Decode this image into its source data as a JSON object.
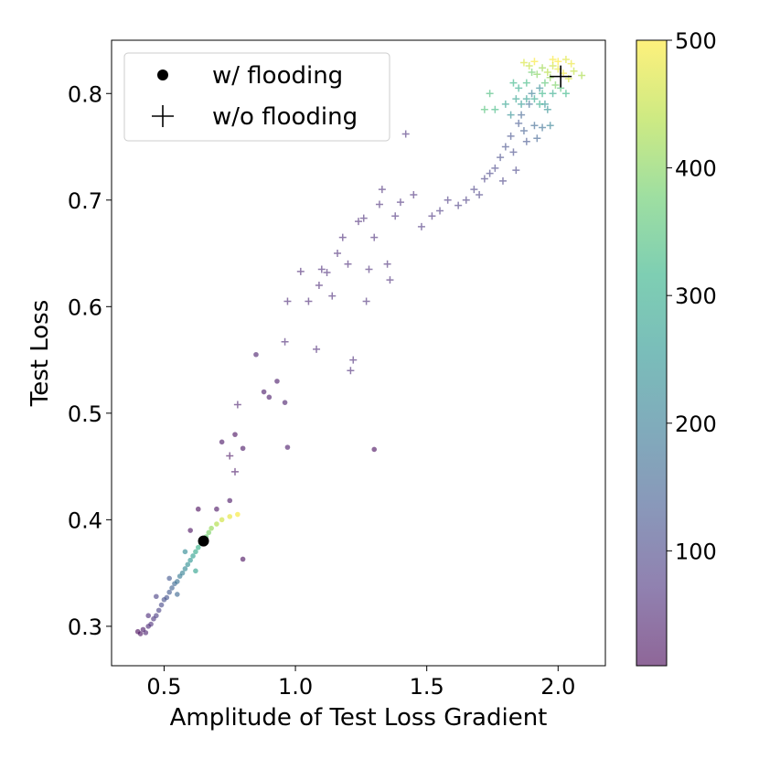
{
  "chart_data": {
    "type": "scatter",
    "xlabel": "Amplitude of Test Loss Gradient",
    "ylabel": "Test Loss",
    "xlim": [
      0.3,
      2.18
    ],
    "ylim": [
      0.263,
      0.85
    ],
    "xticks": [
      {
        "value": 0.5,
        "label": "0.5"
      },
      {
        "value": 1.0,
        "label": "1.0"
      },
      {
        "value": 1.5,
        "label": "1.5"
      },
      {
        "value": 2.0,
        "label": "2.0"
      }
    ],
    "yticks": [
      {
        "value": 0.3,
        "label": "0.3"
      },
      {
        "value": 0.4,
        "label": "0.4"
      },
      {
        "value": 0.5,
        "label": "0.5"
      },
      {
        "value": 0.6,
        "label": "0.6"
      },
      {
        "value": 0.7,
        "label": "0.7"
      },
      {
        "value": 0.8,
        "label": "0.8"
      }
    ],
    "grid": false,
    "legend": {
      "placement": "top-left",
      "entries": [
        {
          "label": "w/ flooding",
          "marker": "dot"
        },
        {
          "label": "w/o flooding",
          "marker": "plus"
        }
      ]
    },
    "colorbar": {
      "colormap": "viridis",
      "range": [
        10,
        500
      ],
      "ticks": [
        {
          "value": 100,
          "label": "100"
        },
        {
          "value": 200,
          "label": "200"
        },
        {
          "value": 300,
          "label": "300"
        },
        {
          "value": 400,
          "label": "400"
        },
        {
          "value": 500,
          "label": "500"
        }
      ]
    },
    "final_points": [
      {
        "series": "w/ flooding",
        "x": 0.65,
        "y": 0.38
      },
      {
        "series": "w/o flooding",
        "x": 2.01,
        "y": 0.816
      }
    ],
    "series": [
      {
        "name": "w/ flooding",
        "marker": "dot",
        "points": [
          {
            "x": 0.4,
            "y": 0.295,
            "c": 15
          },
          {
            "x": 0.41,
            "y": 0.293,
            "c": 25
          },
          {
            "x": 0.42,
            "y": 0.297,
            "c": 35
          },
          {
            "x": 0.43,
            "y": 0.294,
            "c": 45
          },
          {
            "x": 0.44,
            "y": 0.3,
            "c": 55
          },
          {
            "x": 0.45,
            "y": 0.302,
            "c": 65
          },
          {
            "x": 0.46,
            "y": 0.307,
            "c": 75
          },
          {
            "x": 0.47,
            "y": 0.31,
            "c": 85
          },
          {
            "x": 0.48,
            "y": 0.315,
            "c": 95
          },
          {
            "x": 0.49,
            "y": 0.32,
            "c": 105
          },
          {
            "x": 0.5,
            "y": 0.325,
            "c": 115
          },
          {
            "x": 0.51,
            "y": 0.327,
            "c": 125
          },
          {
            "x": 0.52,
            "y": 0.332,
            "c": 135
          },
          {
            "x": 0.53,
            "y": 0.336,
            "c": 150
          },
          {
            "x": 0.54,
            "y": 0.34,
            "c": 165
          },
          {
            "x": 0.55,
            "y": 0.342,
            "c": 180
          },
          {
            "x": 0.56,
            "y": 0.347,
            "c": 195
          },
          {
            "x": 0.57,
            "y": 0.35,
            "c": 210
          },
          {
            "x": 0.58,
            "y": 0.354,
            "c": 225
          },
          {
            "x": 0.59,
            "y": 0.358,
            "c": 240
          },
          {
            "x": 0.6,
            "y": 0.362,
            "c": 255
          },
          {
            "x": 0.61,
            "y": 0.366,
            "c": 275
          },
          {
            "x": 0.62,
            "y": 0.37,
            "c": 295
          },
          {
            "x": 0.63,
            "y": 0.374,
            "c": 315
          },
          {
            "x": 0.64,
            "y": 0.378,
            "c": 340
          },
          {
            "x": 0.66,
            "y": 0.384,
            "c": 370
          },
          {
            "x": 0.67,
            "y": 0.388,
            "c": 390
          },
          {
            "x": 0.68,
            "y": 0.392,
            "c": 410
          },
          {
            "x": 0.7,
            "y": 0.396,
            "c": 435
          },
          {
            "x": 0.72,
            "y": 0.4,
            "c": 460
          },
          {
            "x": 0.75,
            "y": 0.403,
            "c": 480
          },
          {
            "x": 0.78,
            "y": 0.405,
            "c": 495
          },
          {
            "x": 0.44,
            "y": 0.31,
            "c": 60
          },
          {
            "x": 0.47,
            "y": 0.328,
            "c": 90
          },
          {
            "x": 0.52,
            "y": 0.345,
            "c": 130
          },
          {
            "x": 0.55,
            "y": 0.33,
            "c": 160
          },
          {
            "x": 0.58,
            "y": 0.37,
            "c": 230
          },
          {
            "x": 0.62,
            "y": 0.352,
            "c": 280
          },
          {
            "x": 0.6,
            "y": 0.39,
            "c": 20
          },
          {
            "x": 0.63,
            "y": 0.41,
            "c": 15
          },
          {
            "x": 0.7,
            "y": 0.41,
            "c": 25
          },
          {
            "x": 0.75,
            "y": 0.418,
            "c": 30
          },
          {
            "x": 0.72,
            "y": 0.473,
            "c": 30
          },
          {
            "x": 0.77,
            "y": 0.48,
            "c": 20
          },
          {
            "x": 0.8,
            "y": 0.467,
            "c": 30
          },
          {
            "x": 0.8,
            "y": 0.363,
            "c": 20
          },
          {
            "x": 0.85,
            "y": 0.555,
            "c": 40
          },
          {
            "x": 0.88,
            "y": 0.52,
            "c": 35
          },
          {
            "x": 0.9,
            "y": 0.515,
            "c": 35
          },
          {
            "x": 0.93,
            "y": 0.53,
            "c": 35
          },
          {
            "x": 0.96,
            "y": 0.51,
            "c": 40
          },
          {
            "x": 0.97,
            "y": 0.468,
            "c": 35
          },
          {
            "x": 1.3,
            "y": 0.466,
            "c": 20
          }
        ]
      },
      {
        "name": "w/o flooding",
        "marker": "plus",
        "points": [
          {
            "x": 0.78,
            "y": 0.508,
            "c": 45
          },
          {
            "x": 0.77,
            "y": 0.445,
            "c": 30
          },
          {
            "x": 0.75,
            "y": 0.46,
            "c": 25
          },
          {
            "x": 0.96,
            "y": 0.567,
            "c": 55
          },
          {
            "x": 0.97,
            "y": 0.605,
            "c": 55
          },
          {
            "x": 1.02,
            "y": 0.633,
            "c": 55
          },
          {
            "x": 1.05,
            "y": 0.605,
            "c": 55
          },
          {
            "x": 1.08,
            "y": 0.56,
            "c": 55
          },
          {
            "x": 1.09,
            "y": 0.62,
            "c": 55
          },
          {
            "x": 1.1,
            "y": 0.635,
            "c": 60
          },
          {
            "x": 1.12,
            "y": 0.632,
            "c": 60
          },
          {
            "x": 1.14,
            "y": 0.61,
            "c": 60
          },
          {
            "x": 1.16,
            "y": 0.65,
            "c": 60
          },
          {
            "x": 1.18,
            "y": 0.665,
            "c": 60
          },
          {
            "x": 1.2,
            "y": 0.64,
            "c": 60
          },
          {
            "x": 1.21,
            "y": 0.54,
            "c": 60
          },
          {
            "x": 1.22,
            "y": 0.55,
            "c": 60
          },
          {
            "x": 1.24,
            "y": 0.68,
            "c": 60
          },
          {
            "x": 1.26,
            "y": 0.683,
            "c": 65
          },
          {
            "x": 1.27,
            "y": 0.605,
            "c": 65
          },
          {
            "x": 1.28,
            "y": 0.635,
            "c": 65
          },
          {
            "x": 1.3,
            "y": 0.665,
            "c": 65
          },
          {
            "x": 1.32,
            "y": 0.696,
            "c": 65
          },
          {
            "x": 1.33,
            "y": 0.71,
            "c": 65
          },
          {
            "x": 1.35,
            "y": 0.64,
            "c": 65
          },
          {
            "x": 1.36,
            "y": 0.625,
            "c": 65
          },
          {
            "x": 1.38,
            "y": 0.685,
            "c": 70
          },
          {
            "x": 1.4,
            "y": 0.698,
            "c": 70
          },
          {
            "x": 1.42,
            "y": 0.762,
            "c": 70
          },
          {
            "x": 1.45,
            "y": 0.705,
            "c": 70
          },
          {
            "x": 1.48,
            "y": 0.675,
            "c": 75
          },
          {
            "x": 1.52,
            "y": 0.685,
            "c": 75
          },
          {
            "x": 1.55,
            "y": 0.69,
            "c": 80
          },
          {
            "x": 1.58,
            "y": 0.7,
            "c": 80
          },
          {
            "x": 1.62,
            "y": 0.695,
            "c": 85
          },
          {
            "x": 1.65,
            "y": 0.7,
            "c": 85
          },
          {
            "x": 1.68,
            "y": 0.71,
            "c": 90
          },
          {
            "x": 1.7,
            "y": 0.705,
            "c": 90
          },
          {
            "x": 1.72,
            "y": 0.72,
            "c": 95
          },
          {
            "x": 1.74,
            "y": 0.725,
            "c": 100
          },
          {
            "x": 1.76,
            "y": 0.73,
            "c": 100
          },
          {
            "x": 1.78,
            "y": 0.74,
            "c": 110
          },
          {
            "x": 1.79,
            "y": 0.718,
            "c": 95
          },
          {
            "x": 1.8,
            "y": 0.75,
            "c": 115
          },
          {
            "x": 1.82,
            "y": 0.76,
            "c": 120
          },
          {
            "x": 1.83,
            "y": 0.745,
            "c": 110
          },
          {
            "x": 1.84,
            "y": 0.728,
            "c": 100
          },
          {
            "x": 1.85,
            "y": 0.772,
            "c": 130
          },
          {
            "x": 1.86,
            "y": 0.78,
            "c": 150
          },
          {
            "x": 1.87,
            "y": 0.765,
            "c": 140
          },
          {
            "x": 1.88,
            "y": 0.755,
            "c": 125
          },
          {
            "x": 1.89,
            "y": 0.79,
            "c": 170
          },
          {
            "x": 1.9,
            "y": 0.8,
            "c": 200
          },
          {
            "x": 1.91,
            "y": 0.77,
            "c": 160
          },
          {
            "x": 1.92,
            "y": 0.758,
            "c": 150
          },
          {
            "x": 1.93,
            "y": 0.805,
            "c": 230
          },
          {
            "x": 1.94,
            "y": 0.768,
            "c": 175
          },
          {
            "x": 1.95,
            "y": 0.79,
            "c": 250
          },
          {
            "x": 1.96,
            "y": 0.785,
            "c": 240
          },
          {
            "x": 1.97,
            "y": 0.77,
            "c": 210
          },
          {
            "x": 1.98,
            "y": 0.8,
            "c": 300
          },
          {
            "x": 1.86,
            "y": 0.79,
            "c": 260
          },
          {
            "x": 1.88,
            "y": 0.81,
            "c": 330
          },
          {
            "x": 1.84,
            "y": 0.795,
            "c": 280
          },
          {
            "x": 1.82,
            "y": 0.78,
            "c": 240
          },
          {
            "x": 1.8,
            "y": 0.79,
            "c": 280
          },
          {
            "x": 1.76,
            "y": 0.785,
            "c": 330
          },
          {
            "x": 1.74,
            "y": 0.8,
            "c": 340
          },
          {
            "x": 1.72,
            "y": 0.785,
            "c": 350
          },
          {
            "x": 1.9,
            "y": 0.82,
            "c": 380
          },
          {
            "x": 1.92,
            "y": 0.818,
            "c": 400
          },
          {
            "x": 1.94,
            "y": 0.824,
            "c": 420
          },
          {
            "x": 1.96,
            "y": 0.82,
            "c": 440
          },
          {
            "x": 1.98,
            "y": 0.826,
            "c": 460
          },
          {
            "x": 2.0,
            "y": 0.823,
            "c": 480
          },
          {
            "x": 2.02,
            "y": 0.819,
            "c": 490
          },
          {
            "x": 2.04,
            "y": 0.814,
            "c": 470
          },
          {
            "x": 2.06,
            "y": 0.821,
            "c": 450
          },
          {
            "x": 2.09,
            "y": 0.817,
            "c": 430
          },
          {
            "x": 1.87,
            "y": 0.829,
            "c": 470
          },
          {
            "x": 1.89,
            "y": 0.826,
            "c": 455
          },
          {
            "x": 1.91,
            "y": 0.83,
            "c": 495
          },
          {
            "x": 1.95,
            "y": 0.81,
            "c": 360
          },
          {
            "x": 1.97,
            "y": 0.815,
            "c": 410
          },
          {
            "x": 1.99,
            "y": 0.808,
            "c": 390
          },
          {
            "x": 2.01,
            "y": 0.805,
            "c": 350
          },
          {
            "x": 2.03,
            "y": 0.8,
            "c": 320
          },
          {
            "x": 1.93,
            "y": 0.79,
            "c": 300
          },
          {
            "x": 1.91,
            "y": 0.795,
            "c": 290
          },
          {
            "x": 2.0,
            "y": 0.83,
            "c": 500
          },
          {
            "x": 1.98,
            "y": 0.832,
            "c": 495
          },
          {
            "x": 2.05,
            "y": 0.828,
            "c": 485
          },
          {
            "x": 2.03,
            "y": 0.832,
            "c": 475
          },
          {
            "x": 1.85,
            "y": 0.805,
            "c": 300
          },
          {
            "x": 1.83,
            "y": 0.81,
            "c": 320
          },
          {
            "x": 1.88,
            "y": 0.795,
            "c": 270
          },
          {
            "x": 1.94,
            "y": 0.8,
            "c": 320
          }
        ]
      }
    ]
  }
}
